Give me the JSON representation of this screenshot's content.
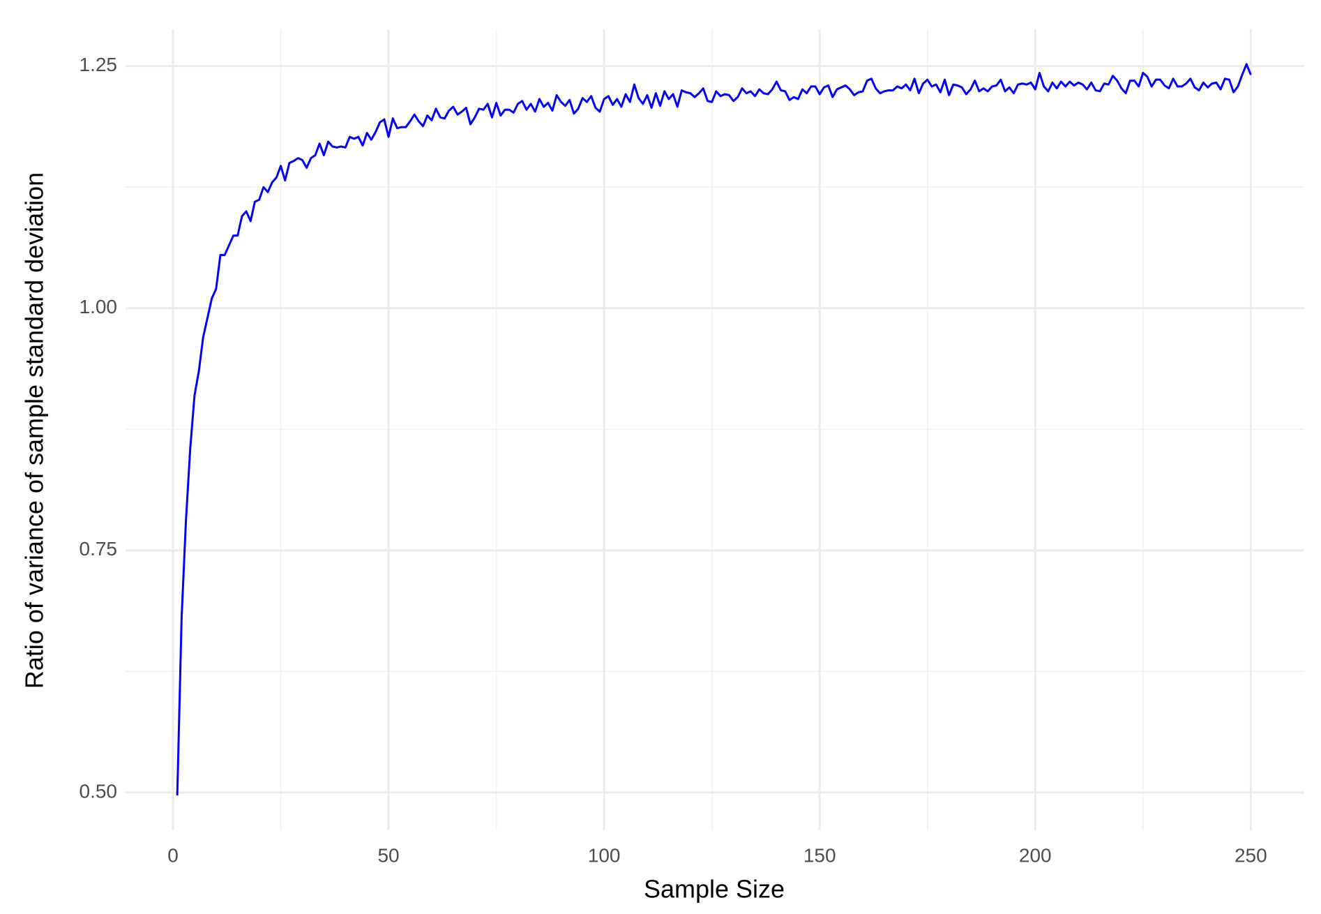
{
  "chart_data": {
    "type": "line",
    "x_label": "Sample Size",
    "y_label": "Ratio of variance of sample standard deviation",
    "xlim": [
      -11,
      262.4
    ],
    "ylim": [
      0.461,
      1.288
    ],
    "xticks": [
      0,
      50,
      100,
      150,
      200,
      250
    ],
    "yticks": [
      {
        "value": 0.5,
        "label": "0.50"
      },
      0.75,
      {
        "value": 1.0,
        "label": "1.00"
      },
      1.25
    ],
    "x_minor_ticks": [
      25,
      75,
      125,
      175,
      225
    ],
    "y_minor_ticks": [
      0.625,
      0.875,
      1.125
    ],
    "grid": true,
    "series": [
      {
        "color": "#0000ff",
        "x": [
          1,
          2,
          3,
          4,
          5,
          6,
          7,
          8,
          9,
          10,
          11,
          12,
          13,
          14,
          15,
          16,
          17,
          18,
          19,
          20,
          21,
          22,
          23,
          24,
          25,
          26,
          27,
          28,
          29,
          30,
          31,
          32,
          33,
          34,
          35,
          36,
          37,
          38,
          39,
          40,
          41,
          42,
          43,
          44,
          45,
          46,
          47,
          48,
          49,
          50,
          51,
          52,
          53,
          54,
          55,
          56,
          57,
          58,
          59,
          60,
          61,
          62,
          63,
          64,
          65,
          66,
          67,
          68,
          69,
          70,
          71,
          72,
          73,
          74,
          75,
          76,
          77,
          78,
          79,
          80,
          81,
          82,
          83,
          84,
          85,
          86,
          87,
          88,
          89,
          90,
          91,
          92,
          93,
          94,
          95,
          96,
          97,
          98,
          99,
          100,
          101,
          102,
          103,
          104,
          105,
          106,
          107,
          108,
          109,
          110,
          111,
          112,
          113,
          114,
          115,
          116,
          117,
          118,
          119,
          120,
          121,
          122,
          123,
          124,
          125,
          126,
          127,
          128,
          129,
          130,
          131,
          132,
          133,
          134,
          135,
          136,
          137,
          138,
          139,
          140,
          141,
          142,
          143,
          144,
          145,
          146,
          147,
          148,
          149,
          150,
          151,
          152,
          153,
          154,
          155,
          156,
          157,
          158,
          159,
          160,
          161,
          162,
          163,
          164,
          165,
          166,
          167,
          168,
          169,
          170,
          171,
          172,
          173,
          174,
          175,
          176,
          177,
          178,
          179,
          180,
          181,
          182,
          183,
          184,
          185,
          186,
          187,
          188,
          189,
          190,
          191,
          192,
          193,
          194,
          195,
          196,
          197,
          198,
          199,
          200,
          201,
          202,
          203,
          204,
          205,
          206,
          207,
          208,
          209,
          210,
          211,
          212,
          213,
          214,
          215,
          216,
          217,
          218,
          219,
          220,
          221,
          222,
          223,
          224,
          225,
          226,
          227,
          228,
          229,
          230,
          231,
          232,
          233,
          234,
          235,
          236,
          237,
          238,
          239,
          240,
          241,
          242,
          243,
          244,
          245,
          246,
          247,
          248,
          249,
          250
        ],
        "values": [
          0.497,
          0.68,
          0.78,
          0.855,
          0.91,
          0.935,
          0.97,
          0.99,
          1.01,
          1.02,
          1.055,
          1.055,
          1.065,
          1.075,
          1.075,
          1.095,
          1.1,
          1.09,
          1.11,
          1.112,
          1.125,
          1.12,
          1.13,
          1.135,
          1.147,
          1.132,
          1.15,
          1.152,
          1.155,
          1.153,
          1.145,
          1.155,
          1.158,
          1.17,
          1.158,
          1.172,
          1.167,
          1.166,
          1.167,
          1.166,
          1.177,
          1.175,
          1.177,
          1.168,
          1.181,
          1.174,
          1.182,
          1.192,
          1.195,
          1.177,
          1.196,
          1.186,
          1.187,
          1.187,
          1.193,
          1.2,
          1.193,
          1.188,
          1.199,
          1.194,
          1.206,
          1.197,
          1.196,
          1.204,
          1.208,
          1.2,
          1.203,
          1.207,
          1.19,
          1.197,
          1.206,
          1.205,
          1.211,
          1.197,
          1.212,
          1.199,
          1.205,
          1.205,
          1.202,
          1.211,
          1.214,
          1.205,
          1.211,
          1.203,
          1.216,
          1.208,
          1.212,
          1.204,
          1.22,
          1.213,
          1.209,
          1.215,
          1.201,
          1.206,
          1.217,
          1.213,
          1.219,
          1.207,
          1.203,
          1.216,
          1.219,
          1.21,
          1.216,
          1.208,
          1.221,
          1.213,
          1.231,
          1.217,
          1.211,
          1.22,
          1.207,
          1.222,
          1.209,
          1.224,
          1.216,
          1.221,
          1.208,
          1.225,
          1.223,
          1.222,
          1.218,
          1.222,
          1.227,
          1.214,
          1.213,
          1.224,
          1.219,
          1.221,
          1.22,
          1.214,
          1.218,
          1.227,
          1.222,
          1.224,
          1.219,
          1.226,
          1.222,
          1.221,
          1.226,
          1.234,
          1.225,
          1.224,
          1.215,
          1.218,
          1.216,
          1.226,
          1.222,
          1.229,
          1.229,
          1.221,
          1.228,
          1.23,
          1.218,
          1.226,
          1.228,
          1.23,
          1.226,
          1.22,
          1.223,
          1.224,
          1.235,
          1.237,
          1.227,
          1.222,
          1.224,
          1.225,
          1.225,
          1.229,
          1.227,
          1.231,
          1.225,
          1.237,
          1.222,
          1.232,
          1.236,
          1.229,
          1.231,
          1.223,
          1.236,
          1.22,
          1.231,
          1.23,
          1.228,
          1.221,
          1.226,
          1.235,
          1.224,
          1.227,
          1.224,
          1.229,
          1.23,
          1.236,
          1.224,
          1.228,
          1.222,
          1.231,
          1.232,
          1.231,
          1.233,
          1.226,
          1.243,
          1.229,
          1.224,
          1.233,
          1.227,
          1.234,
          1.229,
          1.234,
          1.23,
          1.233,
          1.231,
          1.226,
          1.233,
          1.225,
          1.224,
          1.232,
          1.231,
          1.24,
          1.235,
          1.227,
          1.222,
          1.235,
          1.235,
          1.229,
          1.243,
          1.239,
          1.229,
          1.236,
          1.236,
          1.23,
          1.227,
          1.237,
          1.229,
          1.229,
          1.232,
          1.237,
          1.228,
          1.225,
          1.233,
          1.228,
          1.232,
          1.233,
          1.226,
          1.237,
          1.236,
          1.223,
          1.229,
          1.241,
          1.252,
          1.241
        ]
      }
    ]
  }
}
